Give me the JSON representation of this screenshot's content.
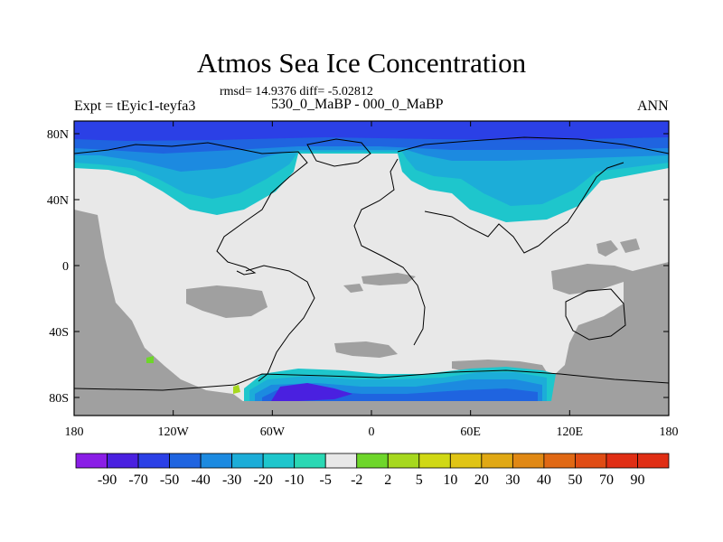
{
  "title": "Atmos Sea Ice Concentration",
  "stats": "rmsd= 14.9376 diff= -5.02812",
  "left_label": "Expt = tEyic1-teyfa3",
  "center_label": "530_0_MaBP - 000_0_MaBP",
  "right_label": "ANN",
  "axes": {
    "x_ticks": [
      "180",
      "120W",
      "60W",
      "0",
      "60E",
      "120E",
      "180"
    ],
    "y_ticks": [
      "80N",
      "40N",
      "0",
      "40S",
      "80S"
    ]
  },
  "colorbar": {
    "labels": [
      "-90",
      "-70",
      "-50",
      "-40",
      "-30",
      "-20",
      "-10",
      "-5",
      "-2",
      "2",
      "5",
      "10",
      "20",
      "30",
      "40",
      "50",
      "70",
      "90"
    ],
    "colors": [
      "#8a1de6",
      "#4a20e0",
      "#2b40e6",
      "#1f64e0",
      "#1c8ae0",
      "#1cadd8",
      "#1ec6cc",
      "#2ad8b4",
      "#e8e8e8",
      "#6ed62a",
      "#a6d81e",
      "#d0d814",
      "#e0c414",
      "#e0a814",
      "#e08814",
      "#e06814",
      "#e04c14",
      "#e02e14"
    ]
  },
  "colors": {
    "land": "#a0a0a0",
    "no_change": "#e8e8e8",
    "coast": "#000000"
  }
}
